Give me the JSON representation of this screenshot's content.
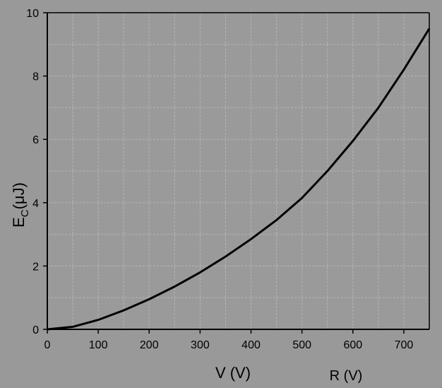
{
  "chart_data": {
    "type": "line",
    "title": "",
    "xlabel": "V (V)",
    "xlabel_extra": "R (V)",
    "ylabel": "E",
    "ylabel_sub": "C",
    "ylabel_unit": "(μJ)",
    "xlim": [
      0,
      750
    ],
    "ylim": [
      0,
      10
    ],
    "x_ticks": [
      0,
      100,
      200,
      300,
      400,
      500,
      600,
      700
    ],
    "y_ticks": [
      0,
      2,
      4,
      6,
      8,
      10
    ],
    "grid": true,
    "series": [
      {
        "x": [
          0,
          50,
          100,
          150,
          200,
          250,
          300,
          350,
          400,
          450,
          500,
          550,
          600,
          650,
          700,
          750
        ],
        "y": [
          0.0,
          0.08,
          0.3,
          0.6,
          0.95,
          1.35,
          1.8,
          2.3,
          2.85,
          3.45,
          4.15,
          5.0,
          5.95,
          7.0,
          8.2,
          9.5
        ]
      }
    ],
    "colors": {
      "background": "#999999",
      "line": "#000000",
      "grid": "#b5b5b5",
      "axis": "#000000"
    }
  }
}
